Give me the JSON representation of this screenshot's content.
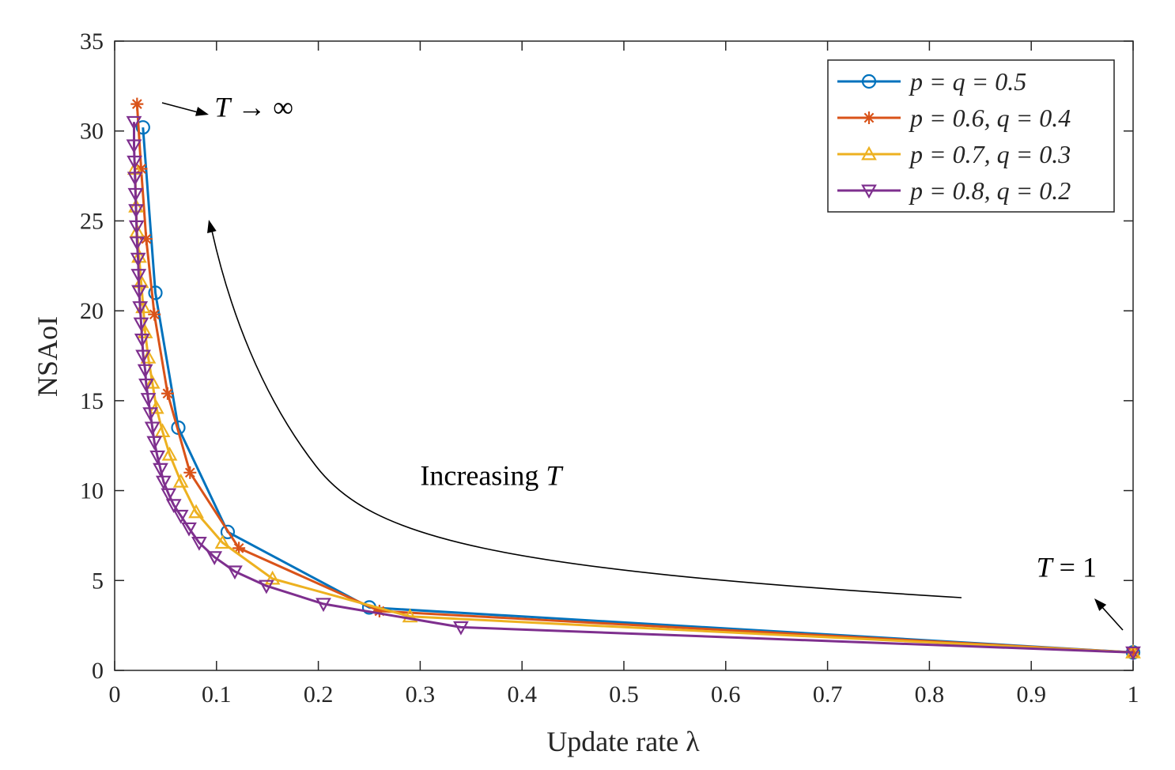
{
  "chart_data": {
    "type": "line",
    "xlabel": "Update rate λ",
    "ylabel": "NSAoI",
    "xlim": [
      0,
      1
    ],
    "ylim": [
      0,
      35
    ],
    "xticks": [
      0,
      0.1,
      0.2,
      0.3,
      0.4,
      0.5,
      0.6,
      0.7,
      0.8,
      0.9,
      1
    ],
    "xtick_labels": [
      "0",
      "0.1",
      "0.2",
      "0.3",
      "0.4",
      "0.5",
      "0.6",
      "0.7",
      "0.8",
      "0.9",
      "1"
    ],
    "yticks": [
      0,
      5,
      10,
      15,
      20,
      25,
      30,
      35
    ],
    "ytick_labels": [
      "0",
      "5",
      "10",
      "15",
      "20",
      "25",
      "30",
      "35"
    ],
    "grid": false,
    "legend_position": "top-right",
    "series": [
      {
        "name": "p = q = 0.5",
        "color": "#0072BD",
        "marker": "circle",
        "x": [
          1,
          0.25,
          0.111,
          0.0625,
          0.04,
          0.0278
        ],
        "y": [
          1,
          3.5,
          7.7,
          13.5,
          21.0,
          30.2
        ]
      },
      {
        "name": "p = 0.6, q = 0.4",
        "color": "#D95319",
        "marker": "asterisk",
        "x": [
          1,
          0.26,
          0.122,
          0.074,
          0.052,
          0.039,
          0.031,
          0.026,
          0.022
        ],
        "y": [
          1,
          3.3,
          6.8,
          11.0,
          15.4,
          19.8,
          24.0,
          27.9,
          31.5
        ]
      },
      {
        "name": "p = 0.7, q = 0.3",
        "color": "#EDB120",
        "marker": "triangle-up",
        "x": [
          1,
          0.29,
          0.155,
          0.106,
          0.08,
          0.065,
          0.054,
          0.047,
          0.041,
          0.037,
          0.033,
          0.03,
          0.028,
          0.026,
          0.024,
          0.022,
          0.021,
          0.02
        ],
        "y": [
          1,
          3.0,
          5.1,
          7.1,
          8.8,
          10.5,
          12.0,
          13.3,
          14.6,
          16.0,
          17.4,
          18.8,
          20.2,
          21.6,
          23.0,
          24.4,
          25.8,
          27.9
        ]
      },
      {
        "name": "p = 0.8, q = 0.2",
        "color": "#7E2F8E",
        "marker": "triangle-down",
        "x": [
          1,
          0.34,
          0.205,
          0.149,
          0.118,
          0.098,
          0.083,
          0.073,
          0.065,
          0.058,
          0.053,
          0.048,
          0.045,
          0.042,
          0.039,
          0.037,
          0.035,
          0.033,
          0.031,
          0.03,
          0.028,
          0.027,
          0.026,
          0.025,
          0.024,
          0.0235,
          0.023,
          0.022,
          0.0215,
          0.021,
          0.0205,
          0.02,
          0.0195,
          0.019,
          0.019
        ],
        "y": [
          1,
          2.4,
          3.7,
          4.7,
          5.5,
          6.3,
          7.1,
          7.9,
          8.6,
          9.2,
          9.8,
          10.5,
          11.2,
          11.9,
          12.7,
          13.5,
          14.3,
          15.1,
          15.9,
          16.7,
          17.5,
          18.4,
          19.3,
          20.2,
          21.1,
          22.0,
          22.9,
          23.8,
          24.7,
          25.6,
          26.5,
          27.4,
          28.3,
          29.2,
          30.5
        ]
      }
    ],
    "annotations": [
      {
        "id": "t-inf",
        "prefix": "T",
        "suffix": " → ∞",
        "x": 0.098,
        "y": 30.8
      },
      {
        "id": "increasing",
        "prefix": "Increasing ",
        "suffix": "T",
        "x": 0.3,
        "y": 10.3
      },
      {
        "id": "t-one",
        "prefix": "T",
        "suffix": " = 1",
        "x": 0.905,
        "y": 5.2
      }
    ]
  }
}
